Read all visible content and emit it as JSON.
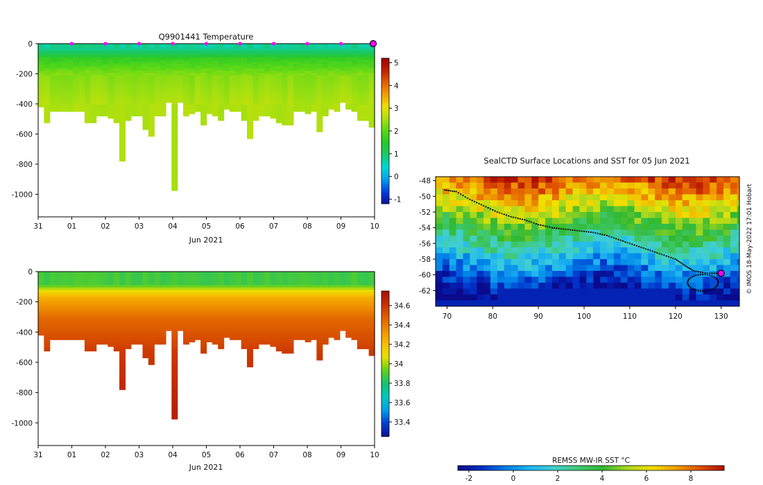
{
  "colors": {
    "temperature_ramp": [
      "#1010a0",
      "#0040e0",
      "#00a0f0",
      "#00d8d8",
      "#18c870",
      "#28c828",
      "#58d818",
      "#a8e010",
      "#f0e000",
      "#f0a000",
      "#e06000",
      "#c02000",
      "#a00000"
    ],
    "salinity_ramp": [
      "#101090",
      "#0040d0",
      "#00a0e8",
      "#00c8c0",
      "#18c070",
      "#60d020",
      "#e8e000",
      "#f8c000",
      "#f09000",
      "#e06000",
      "#c83000",
      "#a81000"
    ],
    "sst_ramp": [
      "#0a0a8c",
      "#0030c8",
      "#0080e8",
      "#20b8f0",
      "#40d0d0",
      "#40c870",
      "#30b830",
      "#a8d820",
      "#f0e000",
      "#f0a000",
      "#e05000",
      "#b01000"
    ],
    "marker": "#ff00ff"
  },
  "chart_data": [
    {
      "type": "heatmap",
      "title": "Q9901441  Temperature",
      "variable": "temperature",
      "xlabel": "Jun 2021",
      "x_ticks": [
        "31",
        "01",
        "02",
        "03",
        "04",
        "05",
        "06",
        "07",
        "08",
        "09",
        "10"
      ],
      "xlim_days": [
        0,
        10
      ],
      "ylim": [
        -1150,
        0
      ],
      "y_ticks": [
        0,
        -200,
        -400,
        -600,
        -800,
        -1000
      ],
      "colorbar_ticks": [
        5,
        4,
        3,
        2,
        1,
        0,
        -1
      ],
      "colorbar_range": [
        -1.2,
        5.2
      ],
      "surface_markers_days": [
        1,
        2,
        3,
        4,
        5,
        6,
        7,
        8,
        9
      ],
      "current_day": 10,
      "surface_value": 0.6,
      "profile_max_depths": [
        420,
        520,
        450,
        445,
        440,
        445,
        445,
        450,
        520,
        525,
        475,
        470,
        495,
        520,
        780,
        500,
        480,
        470,
        560,
        610,
        480,
        480,
        390,
        970,
        380,
        470,
        460,
        440,
        540,
        460,
        480,
        510,
        430,
        440,
        450,
        505,
        620,
        510,
        480,
        470,
        490,
        520,
        535,
        530,
        450,
        440,
        465,
        445,
        580,
        480,
        430,
        450,
        390,
        435,
        450,
        500,
        505,
        545
      ]
    },
    {
      "type": "heatmap",
      "title": "",
      "variable": "salinity",
      "xlabel": "Jun 2021",
      "x_ticks": [
        "31",
        "01",
        "02",
        "03",
        "04",
        "05",
        "06",
        "07",
        "08",
        "09",
        "10"
      ],
      "xlim_days": [
        0,
        10
      ],
      "ylim": [
        -1150,
        0
      ],
      "y_ticks": [
        0,
        -200,
        -400,
        -600,
        -800,
        -1000
      ],
      "colorbar_ticks": [
        34.6,
        34.4,
        34.2,
        34,
        33.8,
        33.6,
        33.4
      ],
      "colorbar_labels": [
        "34.6",
        "34.4",
        "34.2",
        "34",
        "33.8",
        "33.6",
        "33.4"
      ],
      "colorbar_range": [
        33.25,
        34.75
      ],
      "profile_max_depths": [
        420,
        520,
        450,
        445,
        440,
        445,
        445,
        450,
        520,
        525,
        475,
        470,
        495,
        520,
        780,
        500,
        480,
        470,
        560,
        610,
        480,
        480,
        390,
        970,
        380,
        470,
        460,
        440,
        540,
        460,
        480,
        510,
        430,
        440,
        450,
        505,
        620,
        510,
        480,
        470,
        490,
        520,
        535,
        530,
        450,
        440,
        465,
        445,
        580,
        480,
        430,
        450,
        390,
        435,
        450,
        500,
        505,
        545
      ]
    },
    {
      "type": "heatmap",
      "title": "SealCTD Surface Locations and SST for 05 Jun 2021",
      "variable": "sst_map",
      "x_ticks": [
        70,
        80,
        90,
        100,
        110,
        120,
        130
      ],
      "xlim": [
        67.5,
        134
      ],
      "y_ticks": [
        -48,
        -50,
        -52,
        -54,
        -56,
        -58,
        -60,
        -62
      ],
      "ylim": [
        -64,
        -47.5
      ],
      "colorbar_title": "REMSS MW-IR SST °C",
      "colorbar_ticks": [
        -2,
        0,
        2,
        4,
        6,
        8
      ],
      "colorbar_range": [
        -2.5,
        9.5
      ],
      "credit": "© IMOS 18-May-2022 17:01 Hobart",
      "track": [
        [
          69.5,
          -49.2
        ],
        [
          72,
          -49.4
        ],
        [
          75,
          -50.4
        ],
        [
          78,
          -51.2
        ],
        [
          81,
          -52
        ],
        [
          84,
          -52.6
        ],
        [
          87,
          -53
        ],
        [
          90,
          -53.6
        ],
        [
          93,
          -54
        ],
        [
          96,
          -54.2
        ],
        [
          99,
          -54.4
        ],
        [
          102,
          -54.6
        ],
        [
          105,
          -55
        ],
        [
          108,
          -55.6
        ],
        [
          111,
          -56.2
        ],
        [
          114,
          -56.8
        ],
        [
          117,
          -57.4
        ],
        [
          120,
          -58
        ],
        [
          122,
          -58.8
        ],
        [
          124,
          -59.5
        ],
        [
          127,
          -59.8
        ],
        [
          130,
          -59.8
        ]
      ],
      "current_position": [
        130,
        -59.8
      ]
    }
  ]
}
